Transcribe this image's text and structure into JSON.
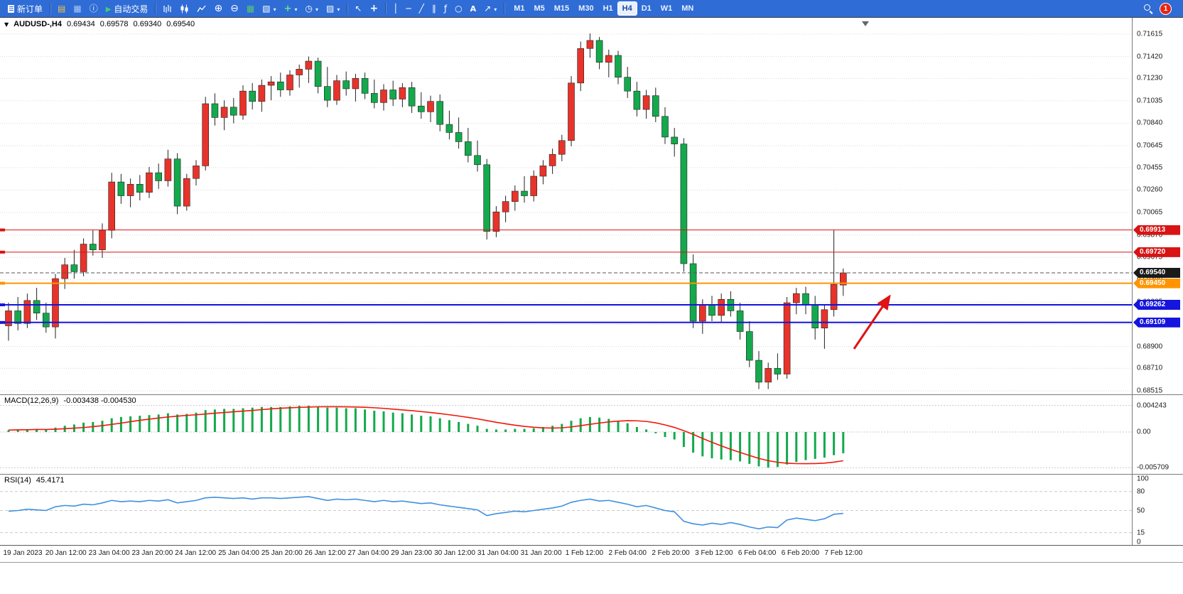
{
  "toolbar": {
    "new_order_label": "新订单",
    "autotrading_label": "自动交易",
    "timeframes": [
      "M1",
      "M5",
      "M15",
      "M30",
      "H1",
      "H4",
      "D1",
      "W1",
      "MN"
    ],
    "active_timeframe": "H4",
    "notification_badge": "1"
  },
  "chart": {
    "symbol_period": "AUDUSD-,H4",
    "ohlc": {
      "open": "0.69434",
      "high": "0.69578",
      "low": "0.69340",
      "close": "0.69540"
    }
  },
  "chart_data": {
    "type": "candlestick",
    "symbol": "AUDUSD-",
    "timeframe": "H4",
    "colors": {
      "up": "#e8332a",
      "down": "#13a94c",
      "macd_hist": "#13a94c",
      "macd_signal": "#f01808",
      "rsi": "#4090e0",
      "toolbar_bg": "#2f6cd5",
      "grid": "#dadada"
    },
    "price_axis_ticks": [
      "0.71615",
      "0.71420",
      "0.71230",
      "0.71035",
      "0.70840",
      "0.70645",
      "0.70455",
      "0.70260",
      "0.70065",
      "0.69870",
      "0.69675",
      "0.69480",
      "0.69285",
      "0.69090",
      "0.68900",
      "0.68710",
      "0.68515"
    ],
    "candles": [
      [
        0.6908,
        0.6928,
        0.6895,
        0.6921
      ],
      [
        0.6921,
        0.6933,
        0.6904,
        0.691
      ],
      [
        0.691,
        0.6936,
        0.6906,
        0.693
      ],
      [
        0.693,
        0.6941,
        0.6913,
        0.6919
      ],
      [
        0.6919,
        0.6928,
        0.6902,
        0.6907
      ],
      [
        0.6907,
        0.6953,
        0.6897,
        0.6949
      ],
      [
        0.6949,
        0.6967,
        0.694,
        0.6961
      ],
      [
        0.6961,
        0.6974,
        0.6949,
        0.6955
      ],
      [
        0.6955,
        0.6984,
        0.6951,
        0.6979
      ],
      [
        0.6979,
        0.6991,
        0.6969,
        0.6974
      ],
      [
        0.6974,
        0.6997,
        0.6967,
        0.6991
      ],
      [
        0.6991,
        0.7041,
        0.6984,
        0.7033
      ],
      [
        0.7033,
        0.704,
        0.7014,
        0.7021
      ],
      [
        0.7021,
        0.7036,
        0.7011,
        0.7031
      ],
      [
        0.7031,
        0.7039,
        0.7017,
        0.7024
      ],
      [
        0.7024,
        0.7046,
        0.7019,
        0.7041
      ],
      [
        0.7041,
        0.7049,
        0.7027,
        0.7034
      ],
      [
        0.7034,
        0.7061,
        0.7029,
        0.7053
      ],
      [
        0.7053,
        0.7058,
        0.7005,
        0.7012
      ],
      [
        0.7012,
        0.704,
        0.7008,
        0.7036
      ],
      [
        0.7036,
        0.7052,
        0.703,
        0.7047
      ],
      [
        0.7047,
        0.7107,
        0.7043,
        0.7101
      ],
      [
        0.7101,
        0.711,
        0.7082,
        0.7089
      ],
      [
        0.7089,
        0.7104,
        0.7078,
        0.7098
      ],
      [
        0.7098,
        0.7106,
        0.7084,
        0.7091
      ],
      [
        0.7091,
        0.7117,
        0.7087,
        0.7112
      ],
      [
        0.7112,
        0.7119,
        0.7096,
        0.7103
      ],
      [
        0.7103,
        0.7122,
        0.7094,
        0.7117
      ],
      [
        0.7117,
        0.7125,
        0.7104,
        0.712
      ],
      [
        0.712,
        0.7128,
        0.7107,
        0.7113
      ],
      [
        0.7113,
        0.713,
        0.7108,
        0.7126
      ],
      [
        0.7126,
        0.7135,
        0.7115,
        0.7131
      ],
      [
        0.7131,
        0.7142,
        0.7119,
        0.7138
      ],
      [
        0.7138,
        0.7141,
        0.711,
        0.7116
      ],
      [
        0.7116,
        0.7133,
        0.7098,
        0.7104
      ],
      [
        0.7104,
        0.7126,
        0.71,
        0.7121
      ],
      [
        0.7121,
        0.7129,
        0.7108,
        0.7114
      ],
      [
        0.7114,
        0.7127,
        0.7103,
        0.7123
      ],
      [
        0.7123,
        0.7128,
        0.7105,
        0.711
      ],
      [
        0.711,
        0.7122,
        0.7097,
        0.7102
      ],
      [
        0.7102,
        0.7118,
        0.7095,
        0.7113
      ],
      [
        0.7113,
        0.7121,
        0.7099,
        0.7105
      ],
      [
        0.7105,
        0.7119,
        0.7098,
        0.7115
      ],
      [
        0.7115,
        0.712,
        0.7093,
        0.7099
      ],
      [
        0.7099,
        0.7111,
        0.7088,
        0.7094
      ],
      [
        0.7094,
        0.7108,
        0.7085,
        0.7103
      ],
      [
        0.7103,
        0.7109,
        0.7077,
        0.7083
      ],
      [
        0.7083,
        0.7095,
        0.707,
        0.7076
      ],
      [
        0.7076,
        0.7089,
        0.7062,
        0.7068
      ],
      [
        0.7068,
        0.708,
        0.705,
        0.7056
      ],
      [
        0.7056,
        0.7069,
        0.7042,
        0.7048
      ],
      [
        0.7048,
        0.7053,
        0.6983,
        0.699
      ],
      [
        0.699,
        0.7012,
        0.6985,
        0.7007
      ],
      [
        0.7007,
        0.7021,
        0.6998,
        0.7016
      ],
      [
        0.7016,
        0.703,
        0.7008,
        0.7025
      ],
      [
        0.7025,
        0.7038,
        0.7015,
        0.7021
      ],
      [
        0.7021,
        0.7043,
        0.7016,
        0.7038
      ],
      [
        0.7038,
        0.7052,
        0.7031,
        0.7047
      ],
      [
        0.7047,
        0.7062,
        0.704,
        0.7057
      ],
      [
        0.7057,
        0.7074,
        0.7051,
        0.7069
      ],
      [
        0.7069,
        0.7125,
        0.7064,
        0.7119
      ],
      [
        0.7119,
        0.7155,
        0.7112,
        0.7149
      ],
      [
        0.7149,
        0.7162,
        0.7141,
        0.7156
      ],
      [
        0.7156,
        0.7159,
        0.7131,
        0.7137
      ],
      [
        0.7137,
        0.7148,
        0.7124,
        0.7143
      ],
      [
        0.7143,
        0.7147,
        0.7118,
        0.7124
      ],
      [
        0.7124,
        0.7133,
        0.7106,
        0.7112
      ],
      [
        0.7112,
        0.712,
        0.709,
        0.7096
      ],
      [
        0.7096,
        0.7113,
        0.7088,
        0.7108
      ],
      [
        0.7108,
        0.7115,
        0.7085,
        0.709
      ],
      [
        0.709,
        0.7098,
        0.7066,
        0.7072
      ],
      [
        0.7072,
        0.708,
        0.7055,
        0.7066
      ],
      [
        0.7066,
        0.7071,
        0.6955,
        0.6962
      ],
      [
        0.6962,
        0.697,
        0.6906,
        0.6912
      ],
      [
        0.6912,
        0.6931,
        0.6901,
        0.6926
      ],
      [
        0.6926,
        0.6934,
        0.6912,
        0.6917
      ],
      [
        0.6917,
        0.6936,
        0.6911,
        0.6931
      ],
      [
        0.6931,
        0.6938,
        0.6916,
        0.6921
      ],
      [
        0.6921,
        0.6928,
        0.6896,
        0.6903
      ],
      [
        0.6903,
        0.6912,
        0.6872,
        0.6878
      ],
      [
        0.6878,
        0.6886,
        0.6853,
        0.6859
      ],
      [
        0.6859,
        0.6876,
        0.6853,
        0.6871
      ],
      [
        0.6871,
        0.6884,
        0.6861,
        0.6866
      ],
      [
        0.6866,
        0.6933,
        0.6862,
        0.6928
      ],
      [
        0.6928,
        0.6941,
        0.6918,
        0.6936
      ],
      [
        0.6936,
        0.6942,
        0.6918,
        0.6926
      ],
      [
        0.6926,
        0.6934,
        0.6896,
        0.6906
      ],
      [
        0.6906,
        0.6926,
        0.6888,
        0.6922
      ],
      [
        0.6922,
        0.6991,
        0.6916,
        0.6944
      ],
      [
        0.69434,
        0.69578,
        0.6934,
        0.6954
      ]
    ],
    "hlines": [
      {
        "price": 0.69913,
        "label": "0.69913",
        "color": "#d81414",
        "width": 1,
        "name": "resistance-line-1"
      },
      {
        "price": 0.6972,
        "label": "0.69720",
        "color": "#d81414",
        "width": 1,
        "name": "resistance-line-2"
      },
      {
        "price": 0.6945,
        "label": "0.69450",
        "color": "#ff9400",
        "width": 2,
        "name": "orange-level-line"
      },
      {
        "price": 0.69262,
        "label": "0.69262",
        "color": "#1515dd",
        "width": 2,
        "name": "support-line-1"
      },
      {
        "price": 0.69109,
        "label": "0.69109",
        "color": "#1515dd",
        "width": 2,
        "name": "support-line-2"
      }
    ],
    "current_price": {
      "price": 0.6954,
      "label": "0.69540",
      "color": "#1a1a1a"
    },
    "arrow": {
      "type": "arrow",
      "direction": "up-right",
      "color": "#e01212"
    },
    "macd": {
      "name": "MACD(12,26,9)",
      "values": "-0.003438 -0.004530",
      "axis": [
        "0.004243",
        "0.00",
        "-0.005709"
      ],
      "hist": [
        0.0003,
        0.0004,
        0.0004,
        0.0005,
        0.0004,
        0.0007,
        0.001,
        0.0012,
        0.0015,
        0.0016,
        0.0018,
        0.0022,
        0.0024,
        0.0025,
        0.0026,
        0.0027,
        0.0028,
        0.003,
        0.0028,
        0.0029,
        0.0031,
        0.0035,
        0.0036,
        0.0037,
        0.0037,
        0.0038,
        0.0039,
        0.004,
        0.004,
        0.004,
        0.0041,
        0.0042,
        0.0042,
        0.0041,
        0.0039,
        0.0039,
        0.0038,
        0.0038,
        0.0036,
        0.0034,
        0.0033,
        0.0031,
        0.003,
        0.0028,
        0.0026,
        0.0025,
        0.0022,
        0.0019,
        0.0016,
        0.0013,
        0.001,
        0.0005,
        0.0004,
        0.0004,
        0.0005,
        0.0005,
        0.0006,
        0.0008,
        0.001,
        0.0013,
        0.0018,
        0.0022,
        0.0024,
        0.0023,
        0.0021,
        0.0018,
        0.0014,
        0.0008,
        0.0004,
        -0.0002,
        -0.0008,
        -0.0012,
        -0.0024,
        -0.0033,
        -0.0039,
        -0.0042,
        -0.0044,
        -0.0045,
        -0.0047,
        -0.0051,
        -0.0055,
        -0.0057,
        -0.0056,
        -0.0052,
        -0.0048,
        -0.0045,
        -0.0043,
        -0.0041,
        -0.0037,
        -0.0034
      ]
    },
    "rsi": {
      "name": "RSI(14)",
      "value": "45.4171",
      "axis": [
        "100",
        "80",
        "50",
        "15",
        "0"
      ],
      "values": [
        49,
        50,
        52,
        51,
        50,
        56,
        58,
        57,
        60,
        59,
        62,
        66,
        64,
        65,
        64,
        66,
        65,
        67,
        62,
        64,
        66,
        70,
        71,
        70,
        69,
        70,
        68,
        70,
        70,
        69,
        70,
        71,
        72,
        69,
        66,
        68,
        67,
        68,
        66,
        64,
        66,
        64,
        65,
        63,
        61,
        62,
        59,
        57,
        55,
        53,
        51,
        42,
        45,
        47,
        49,
        48,
        50,
        52,
        54,
        57,
        63,
        66,
        68,
        65,
        66,
        63,
        60,
        56,
        58,
        54,
        50,
        48,
        33,
        29,
        27,
        30,
        28,
        31,
        28,
        24,
        21,
        24,
        23,
        35,
        38,
        36,
        34,
        37,
        44,
        45.4
      ]
    },
    "time_axis": [
      "19 Jan 2023",
      "20 Jan 12:00",
      "23 Jan 04:00",
      "23 Jan 20:00",
      "24 Jan 12:00",
      "25 Jan 04:00",
      "25 Jan 20:00",
      "26 Jan 12:00",
      "27 Jan 04:00",
      "29 Jan 23:00",
      "30 Jan 12:00",
      "31 Jan 04:00",
      "31 Jan 20:00",
      "1 Feb 12:00",
      "2 Feb 04:00",
      "2 Feb 20:00",
      "3 Feb 12:00",
      "6 Feb 04:00",
      "6 Feb 20:00",
      "7 Feb 12:00"
    ]
  }
}
